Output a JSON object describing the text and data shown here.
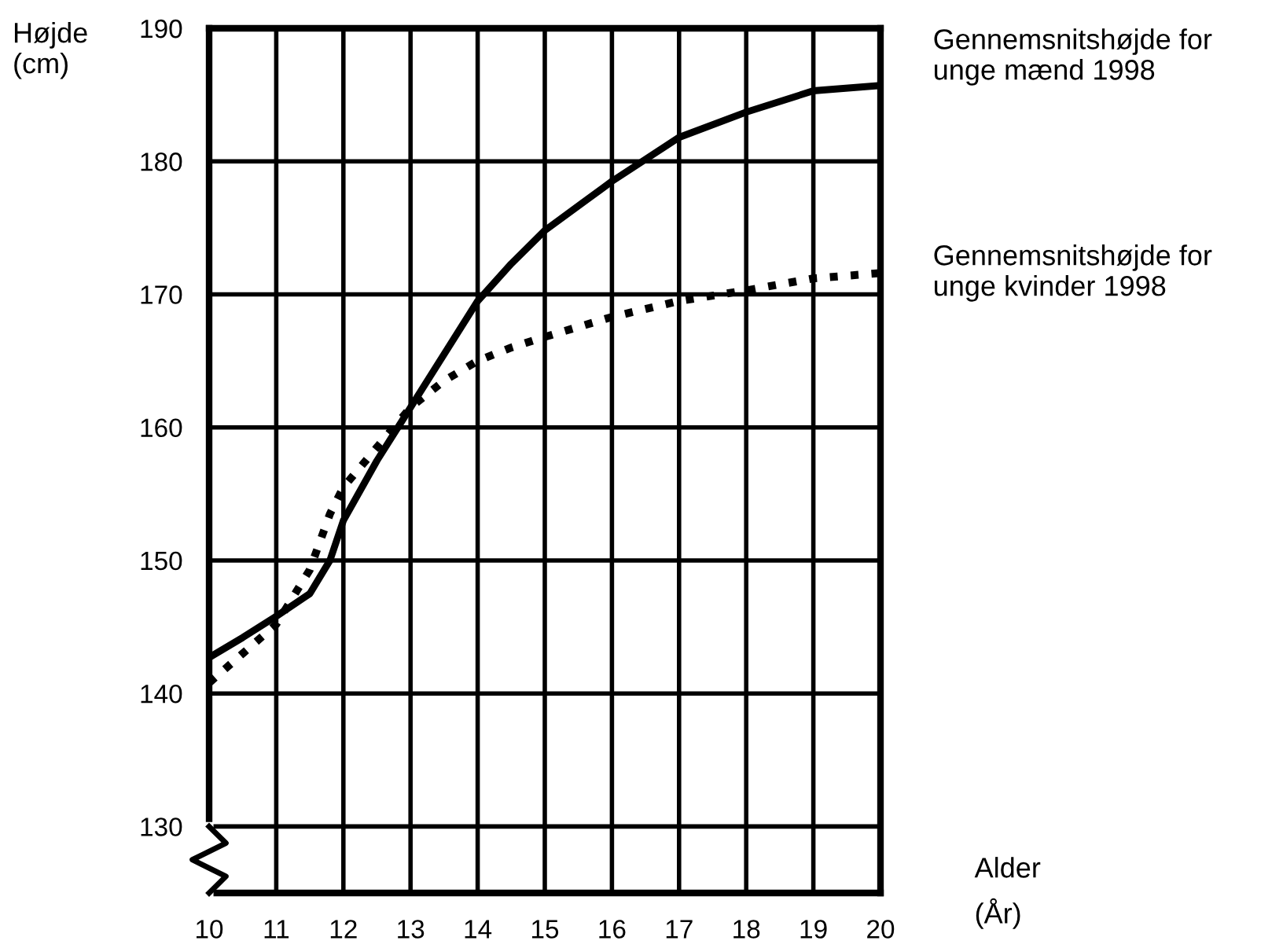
{
  "chart_data": {
    "type": "line",
    "xlabel": "Alder\n(År)",
    "ylabel": "Højde\n(cm)",
    "x": [
      10,
      10.5,
      11,
      11.5,
      11.8,
      12,
      12.5,
      13,
      13.5,
      14,
      14.5,
      15,
      16,
      17,
      18,
      19,
      20
    ],
    "series": [
      {
        "name": "Gennemsnitshøjde for\nunge mænd 1998",
        "color": "#000000",
        "line_style": "solid",
        "values": [
          142.7,
          144.2,
          145.8,
          147.5,
          150,
          153,
          157.5,
          161.5,
          165.5,
          169.5,
          172.3,
          174.8,
          178.5,
          181.8,
          183.7,
          185.3,
          185.7
        ]
      },
      {
        "name": "Gennemsnitshøjde for\nunge kvinder 1998",
        "color": "#000000",
        "line_style": "dotted",
        "values": [
          140.8,
          143,
          145.2,
          149.3,
          153.5,
          155.5,
          158.5,
          161.5,
          163.5,
          165,
          166,
          166.8,
          168.3,
          169.5,
          170.3,
          171.2,
          171.6
        ]
      }
    ],
    "xlim": [
      10,
      20
    ],
    "xticks": [
      10,
      11,
      12,
      13,
      14,
      15,
      16,
      17,
      18,
      19,
      20
    ],
    "ylim": [
      125,
      190
    ],
    "yticks": [
      130,
      140,
      150,
      160,
      170,
      180,
      190
    ],
    "grid": true,
    "marker": "none",
    "legend": false
  }
}
